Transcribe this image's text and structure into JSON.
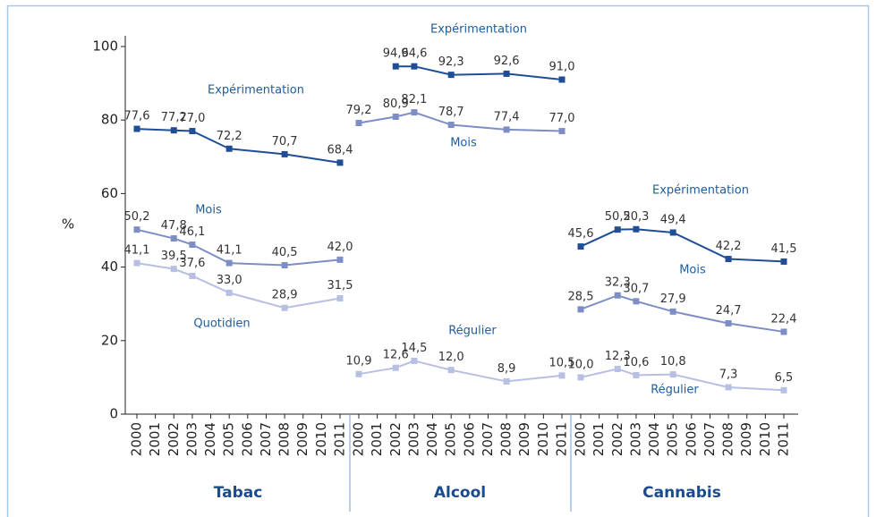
{
  "chart_data": [
    {
      "type": "line",
      "title": "Tabac",
      "ylabel": "%",
      "ylim": [
        0,
        100
      ],
      "yticks": [
        0,
        20,
        40,
        60,
        80,
        100
      ],
      "xlim": [
        2000,
        2011
      ],
      "xticks": [
        2000,
        2001,
        2002,
        2003,
        2004,
        2005,
        2006,
        2007,
        2008,
        2009,
        2010,
        2011
      ],
      "series": [
        {
          "name": "Expérimentation",
          "color": "#1f4e96",
          "x": [
            2000,
            2002,
            2003,
            2005,
            2008,
            2011
          ],
          "values": [
            77.6,
            77.2,
            77.0,
            72.2,
            70.7,
            68.4
          ],
          "value_labels": [
            "77,6",
            "77,2",
            "77,0",
            "72,2",
            "70,7",
            "68,4"
          ]
        },
        {
          "name": "Mois",
          "color": "#7d8ec6",
          "x": [
            2000,
            2002,
            2003,
            2005,
            2008,
            2011
          ],
          "values": [
            50.2,
            47.8,
            46.1,
            41.1,
            40.5,
            42.0
          ],
          "value_labels": [
            "50,2",
            "47,8",
            "46,1",
            "41,1",
            "40,5",
            "42,0"
          ]
        },
        {
          "name": "Quotidien",
          "color": "#b7bfe2",
          "x": [
            2000,
            2002,
            2003,
            2005,
            2008,
            2011
          ],
          "values": [
            41.1,
            39.5,
            37.6,
            33.0,
            28.9,
            31.5
          ],
          "value_labels": [
            "41,1",
            "39,5",
            "37,6",
            "33,0",
            "28,9",
            "31,5"
          ]
        }
      ]
    },
    {
      "type": "line",
      "title": "Alcool",
      "xlim": [
        2000,
        2011
      ],
      "xticks": [
        2000,
        2001,
        2002,
        2003,
        2004,
        2005,
        2006,
        2007,
        2008,
        2009,
        2010,
        2011
      ],
      "series": [
        {
          "name": "Expérimentation",
          "color": "#1f4e96",
          "x": [
            2002,
            2003,
            2005,
            2008,
            2011
          ],
          "values": [
            94.6,
            94.6,
            92.3,
            92.6,
            91.0
          ],
          "value_labels": [
            "94,6",
            "94,6",
            "92,3",
            "92,6",
            "91,0"
          ]
        },
        {
          "name": "Mois",
          "color": "#7d8ec6",
          "x": [
            2000,
            2002,
            2003,
            2005,
            2008,
            2011
          ],
          "values": [
            79.2,
            80.9,
            82.1,
            78.7,
            77.4,
            77.0
          ],
          "value_labels": [
            "79,2",
            "80,9",
            "82,1",
            "78,7",
            "77,4",
            "77,0"
          ]
        },
        {
          "name": "Régulier",
          "color": "#b7bfe2",
          "x": [
            2000,
            2002,
            2003,
            2005,
            2008,
            2011
          ],
          "values": [
            10.9,
            12.6,
            14.5,
            12.0,
            8.9,
            10.5
          ],
          "value_labels": [
            "10,9",
            "12,6",
            "14,5",
            "12,0",
            "8,9",
            "10,5"
          ]
        }
      ]
    },
    {
      "type": "line",
      "title": "Cannabis",
      "xlim": [
        2000,
        2011
      ],
      "xticks": [
        2000,
        2001,
        2002,
        2003,
        2004,
        2005,
        2006,
        2007,
        2008,
        2009,
        2010,
        2011
      ],
      "series": [
        {
          "name": "Expérimentation",
          "color": "#1f4e96",
          "x": [
            2000,
            2002,
            2003,
            2005,
            2008,
            2011
          ],
          "values": [
            45.6,
            50.2,
            50.3,
            49.4,
            42.2,
            41.5
          ],
          "value_labels": [
            "45,6",
            "50,2",
            "50,3",
            "49,4",
            "42,2",
            "41,5"
          ]
        },
        {
          "name": "Mois",
          "color": "#7d8ec6",
          "x": [
            2000,
            2002,
            2003,
            2005,
            2008,
            2011
          ],
          "values": [
            28.5,
            32.3,
            30.7,
            27.9,
            24.7,
            22.4
          ],
          "value_labels": [
            "28,5",
            "32,3",
            "30,7",
            "27,9",
            "24,7",
            "22,4"
          ]
        },
        {
          "name": "Régulier",
          "color": "#b7bfe2",
          "x": [
            2000,
            2002,
            2003,
            2005,
            2008,
            2011
          ],
          "values": [
            10.0,
            12.3,
            10.6,
            10.8,
            7.3,
            6.5
          ],
          "value_labels": [
            "10,0",
            "12,3",
            "10,6",
            "10,8",
            "7,3",
            "6,5"
          ]
        }
      ]
    }
  ]
}
